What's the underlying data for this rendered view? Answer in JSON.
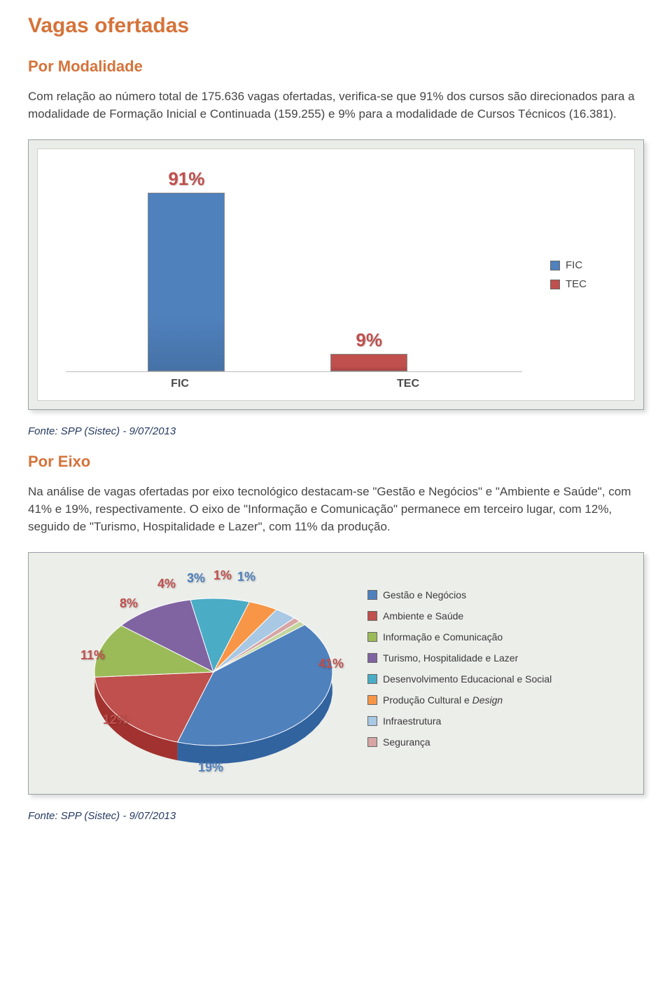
{
  "title": "Vagas ofertadas",
  "section1_title": "Por Modalidade",
  "paragraph1": "Com relação ao número total de 175.636 vagas ofertadas, verifica-se que 91% dos cursos são direcionados para a modalidade de Formação Inicial e Continuada (159.255) e 9% para a modalidade de Cursos Técnicos (16.381).",
  "source_text": "Fonte: SPP (Sistec) - 9/07/2013",
  "bar_chart": {
    "type": "bar",
    "background_color": "#ffffff",
    "frame_bg": "#e9ece8",
    "series": [
      {
        "key": "FIC",
        "label": "FIC",
        "pct": "91%",
        "value": 91,
        "color": "#4f81bd"
      },
      {
        "key": "TEC",
        "label": "TEC",
        "pct": "9%",
        "value": 9,
        "color": "#c0504d"
      }
    ],
    "legend": [
      {
        "label": "FIC",
        "color": "#4f81bd"
      },
      {
        "label": "TEC",
        "color": "#c0504d"
      }
    ],
    "axis_labels": [
      "FIC",
      "TEC"
    ]
  },
  "section2_title": "Por Eixo",
  "paragraph2": "Na análise de vagas ofertadas por eixo tecnológico destacam-se \"Gestão e Negócios\" e \"Ambiente e Saúde\", com 41% e 19%, respectivamente. O eixo de \"Informação e Comunicação\" permanece em terceiro lugar, com 12%, seguido de \"Turismo, Hospitalidade e Lazer\", com 11% da produção.",
  "pie_chart": {
    "type": "pie",
    "background_color": "#eceeea",
    "rotation_deg": -40,
    "slices": [
      {
        "key": "gestao",
        "label": "Gestão e Negócios",
        "value": 41,
        "pct": "41%",
        "color": "#4f81bd",
        "pct_color": "#c0504d",
        "pct_pos": [
          400,
          138
        ]
      },
      {
        "key": "ambiente",
        "label": "Ambiente e Saúde",
        "value": 19,
        "pct": "19%",
        "color": "#c0504d",
        "pct_color": "#4f81bd",
        "pct_pos": [
          228,
          286
        ]
      },
      {
        "key": "info",
        "label": "Informação e Comunicação",
        "value": 12,
        "pct": "12%",
        "color": "#9bbb59",
        "pct_color": "#c0504d",
        "pct_pos": [
          92,
          218
        ]
      },
      {
        "key": "turismo",
        "label": "Turismo, Hospitalidade e Lazer",
        "value": 11,
        "pct": "11%",
        "color": "#8064a2",
        "pct_color": "#c0504d",
        "pct_pos": [
          60,
          126
        ]
      },
      {
        "key": "desenv",
        "label": "Desenvolvimento Educacional e Social",
        "value": 8,
        "pct": "8%",
        "color": "#4bacc6",
        "pct_color": "#c0504d",
        "pct_pos": [
          116,
          52
        ]
      },
      {
        "key": "cultura",
        "label": "Produção Cultural e Design",
        "value": 4,
        "pct": "4%",
        "color": "#f79646",
        "pct_color": "#c0504d",
        "pct_pos": [
          170,
          24
        ]
      },
      {
        "key": "infra",
        "label": "Infraestrutura",
        "value": 3,
        "pct": "3%",
        "color": "#a8c8e4",
        "pct_color": "#4f81bd",
        "pct_pos": [
          212,
          16
        ]
      },
      {
        "key": "seguranca",
        "label": "Segurança",
        "value": 1,
        "pct": "1%",
        "color": "#d6a5a4",
        "pct_color": "#c0504d",
        "pct_pos": [
          250,
          12
        ]
      },
      {
        "key": "outro",
        "label": "",
        "value": 1,
        "pct": "1%",
        "color": "#c4d6a0",
        "pct_color": "#4f81bd",
        "pct_pos": [
          284,
          14
        ]
      }
    ]
  }
}
